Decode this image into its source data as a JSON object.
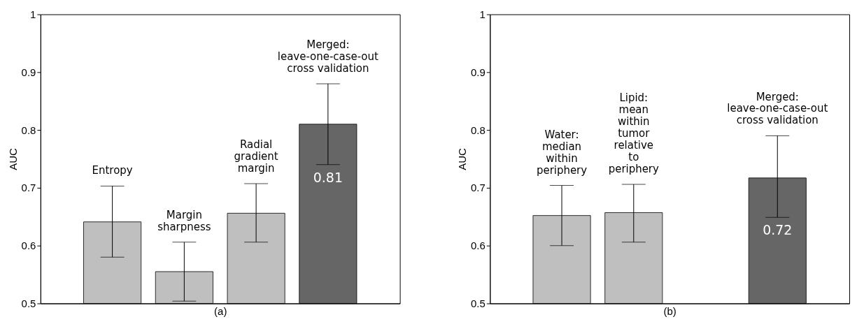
{
  "chart_data": [
    {
      "type": "bar",
      "xlabel": "(a)",
      "ylabel": "AUC",
      "categories": [
        "Entropy",
        "Margin\nsharpness",
        "Radial\ngradient\nmargin",
        "Merged:\nleave-one-case-out\ncross validation"
      ],
      "values": [
        0.641,
        0.555,
        0.656,
        0.81
      ],
      "colors": [
        "#bfbfbf",
        "#bfbfbf",
        "#bfbfbf",
        "#666666"
      ],
      "errors": [
        [
          0.58,
          0.703
        ],
        [
          0.504,
          0.606
        ],
        [
          0.606,
          0.707
        ],
        [
          0.74,
          0.88
        ]
      ],
      "value_labels": [
        null,
        null,
        null,
        "0.81"
      ],
      "ylim": [
        0.5,
        1
      ],
      "yticks": [
        0.5,
        0.6,
        0.7,
        0.8,
        0.9,
        1
      ],
      "tick_labels": "y",
      "grid": false
    },
    {
      "type": "bar",
      "xlabel": "(b)",
      "ylabel": "AUC",
      "categories": [
        "Water:\nmedian\nwithin\nperiphery",
        "Lipid:\nmean\nwithin\ntumor\nrelative\nto\nperiphery",
        null,
        "Merged:\nleave-one-case-out\ncross validation"
      ],
      "values": [
        0.652,
        0.657,
        null,
        0.717
      ],
      "colors": [
        "#bfbfbf",
        "#bfbfbf",
        null,
        "#666666"
      ],
      "errors": [
        [
          0.6,
          0.704
        ],
        [
          0.606,
          0.706
        ],
        null,
        [
          0.649,
          0.79
        ]
      ],
      "value_labels": [
        null,
        null,
        null,
        "0.72"
      ],
      "ylim": [
        0.5,
        1
      ],
      "yticks": [
        0.5,
        0.6,
        0.7,
        0.8,
        0.9,
        1
      ],
      "tick_labels": "y",
      "grid": false
    }
  ]
}
